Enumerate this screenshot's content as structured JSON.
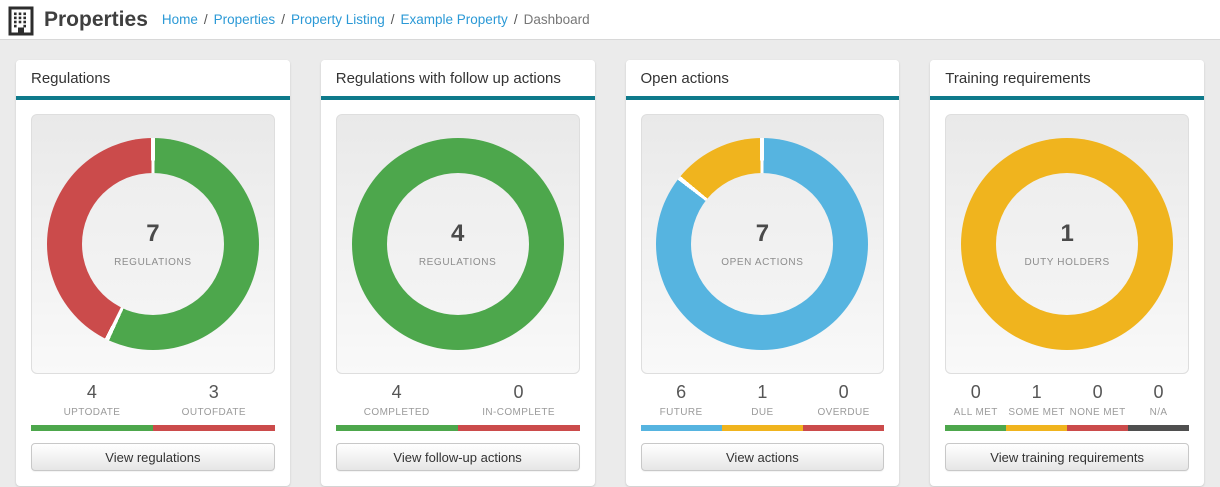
{
  "header": {
    "title": "Properties",
    "separator": "/",
    "breadcrumb": [
      {
        "label": "Home",
        "link": true
      },
      {
        "label": "Properties",
        "link": true
      },
      {
        "label": "Property Listing",
        "link": true
      },
      {
        "label": "Example Property",
        "link": true
      },
      {
        "label": "Dashboard",
        "link": false
      }
    ]
  },
  "colors": {
    "teal_accent": "#0e7a8b",
    "green": "#4da74c",
    "red": "#cb4b4b",
    "blue": "#56b4e0",
    "yellow": "#f0b41e",
    "na_gray": "#4f4f4f",
    "link_blue": "#2b99d6",
    "page_bg": "#ebebeb"
  },
  "cards": [
    {
      "title": "Regulations",
      "chart_type": "donut",
      "center_value": "7",
      "center_label": "REGULATIONS",
      "button_label": "View regulations",
      "segments": [
        {
          "label": "UPTODATE",
          "value": 4,
          "color": "#4da74c"
        },
        {
          "label": "OUTOFDATE",
          "value": 3,
          "color": "#cb4b4b"
        }
      ]
    },
    {
      "title": "Regulations with follow up actions",
      "chart_type": "donut",
      "center_value": "4",
      "center_label": "REGULATIONS",
      "button_label": "View follow-up actions",
      "segments": [
        {
          "label": "COMPLETED",
          "value": 4,
          "color": "#4da74c"
        },
        {
          "label": "IN-COMPLETE",
          "value": 0,
          "color": "#cb4b4b"
        }
      ]
    },
    {
      "title": "Open actions",
      "chart_type": "donut",
      "center_value": "7",
      "center_label": "OPEN ACTIONS",
      "button_label": "View actions",
      "segments": [
        {
          "label": "FUTURE",
          "value": 6,
          "color": "#56b4e0"
        },
        {
          "label": "DUE",
          "value": 1,
          "color": "#f0b41e"
        },
        {
          "label": "OVERDUE",
          "value": 0,
          "color": "#cb4b4b"
        }
      ]
    },
    {
      "title": "Training requirements",
      "chart_type": "donut",
      "center_value": "1",
      "center_label": "DUTY HOLDERS",
      "button_label": "View training requirements",
      "segments": [
        {
          "label": "ALL MET",
          "value": 0,
          "color": "#4da74c"
        },
        {
          "label": "SOME MET",
          "value": 1,
          "color": "#f0b41e"
        },
        {
          "label": "NONE MET",
          "value": 0,
          "color": "#cb4b4b"
        },
        {
          "label": "N/A",
          "value": 0,
          "color": "#4f4f4f"
        }
      ]
    }
  ]
}
